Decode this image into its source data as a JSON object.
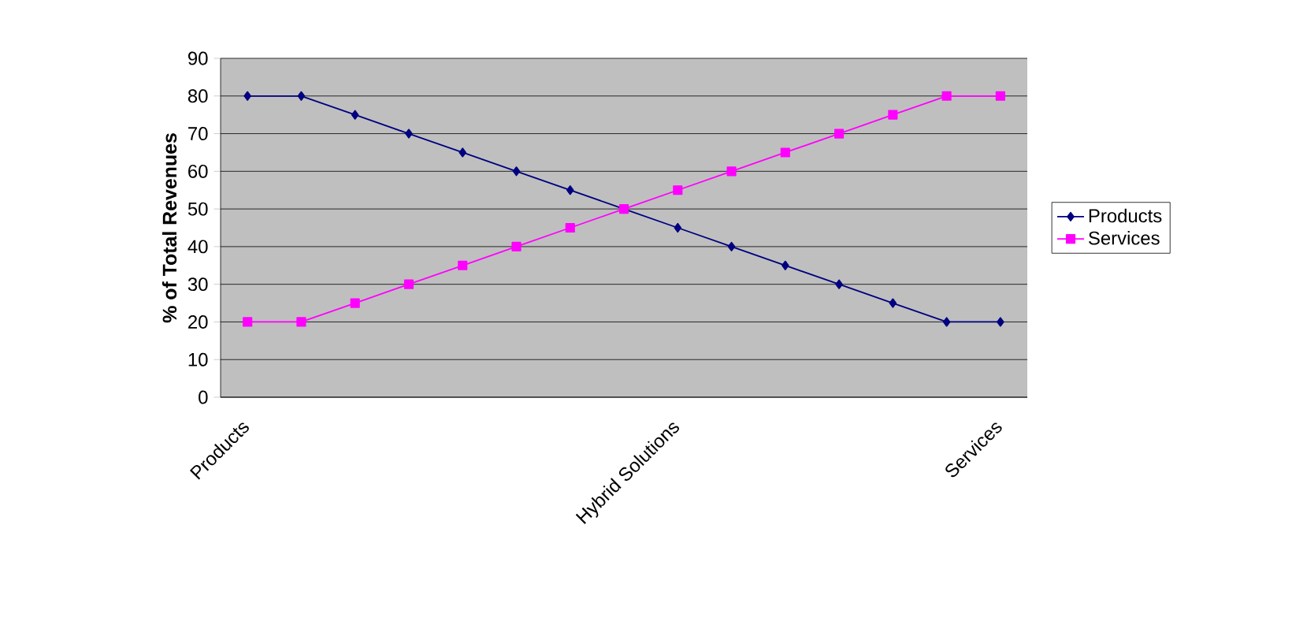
{
  "chart_data": {
    "type": "line",
    "ylabel": "% of Total Revenues",
    "categories": [
      "Products",
      null,
      null,
      null,
      null,
      null,
      null,
      null,
      "Hybrid Solutions",
      null,
      null,
      null,
      null,
      null,
      "Services"
    ],
    "series": [
      {
        "name": "Products",
        "color": "#000080",
        "marker": "diamond",
        "values": [
          80,
          80,
          75,
          70,
          65,
          60,
          55,
          50,
          45,
          40,
          35,
          30,
          25,
          20,
          20
        ]
      },
      {
        "name": "Services",
        "color": "#ff00ff",
        "marker": "square",
        "values": [
          20,
          20,
          25,
          30,
          35,
          40,
          45,
          50,
          55,
          60,
          65,
          70,
          75,
          80,
          80
        ]
      }
    ],
    "ylim": [
      0,
      90
    ],
    "yticks": [
      0,
      10,
      20,
      30,
      40,
      50,
      60,
      70,
      80,
      90
    ],
    "grid": "y",
    "legend": "right"
  }
}
